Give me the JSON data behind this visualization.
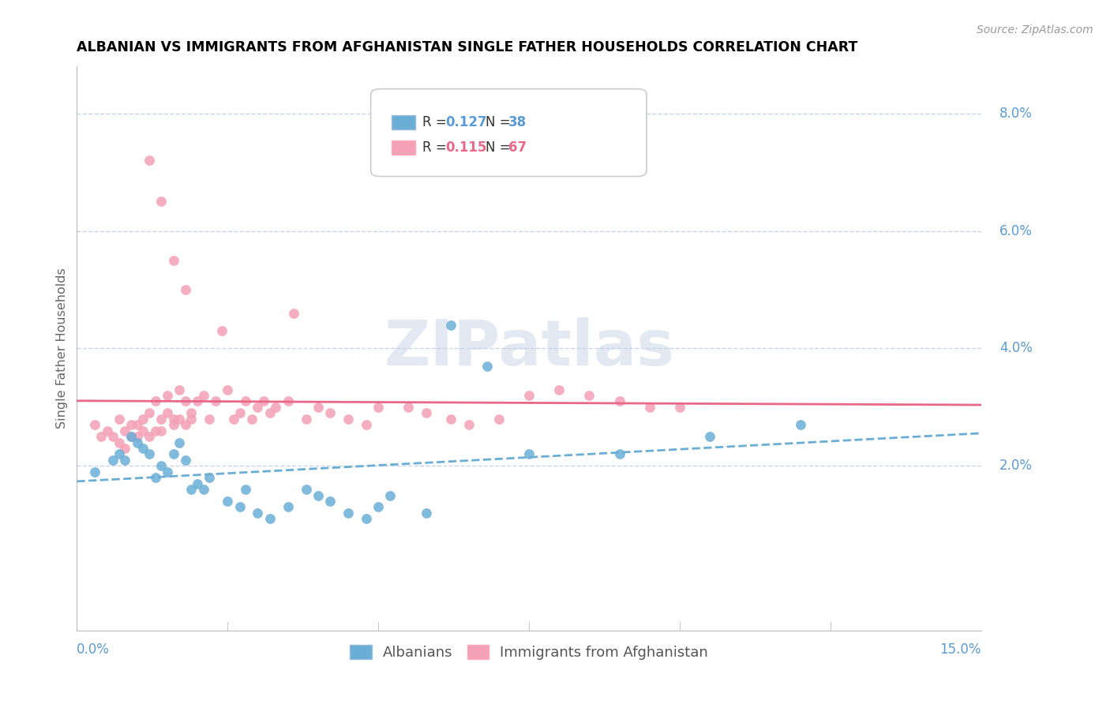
{
  "title": "ALBANIAN VS IMMIGRANTS FROM AFGHANISTAN SINGLE FATHER HOUSEHOLDS CORRELATION CHART",
  "source": "Source: ZipAtlas.com",
  "ylabel": "Single Father Households",
  "xlim": [
    0.0,
    0.15
  ],
  "ylim": [
    -0.008,
    0.088
  ],
  "color_blue": "#6aaed6",
  "color_pink": "#f4a0b5",
  "color_blue_dark": "#4393c3",
  "color_pink_dark": "#e8688a",
  "color_axis": "#5b9bd5",
  "color_grid": "#c8d4e8",
  "watermark": "ZIPatlas",
  "albanians_x": [
    0.003,
    0.006,
    0.007,
    0.008,
    0.009,
    0.01,
    0.011,
    0.012,
    0.013,
    0.014,
    0.015,
    0.016,
    0.017,
    0.018,
    0.019,
    0.02,
    0.021,
    0.022,
    0.025,
    0.027,
    0.028,
    0.03,
    0.032,
    0.035,
    0.038,
    0.04,
    0.042,
    0.045,
    0.048,
    0.05,
    0.052,
    0.058,
    0.062,
    0.068,
    0.075,
    0.09,
    0.105,
    0.12
  ],
  "albanians_y": [
    0.019,
    0.021,
    0.022,
    0.021,
    0.025,
    0.024,
    0.023,
    0.022,
    0.018,
    0.02,
    0.019,
    0.022,
    0.024,
    0.021,
    0.016,
    0.017,
    0.016,
    0.018,
    0.014,
    0.013,
    0.016,
    0.012,
    0.011,
    0.013,
    0.016,
    0.015,
    0.014,
    0.012,
    0.011,
    0.013,
    0.015,
    0.012,
    0.044,
    0.037,
    0.022,
    0.022,
    0.025,
    0.027
  ],
  "afghanistan_x": [
    0.003,
    0.004,
    0.005,
    0.006,
    0.007,
    0.007,
    0.008,
    0.008,
    0.009,
    0.009,
    0.01,
    0.01,
    0.011,
    0.011,
    0.012,
    0.012,
    0.013,
    0.013,
    0.014,
    0.014,
    0.015,
    0.015,
    0.016,
    0.016,
    0.017,
    0.017,
    0.018,
    0.018,
    0.019,
    0.019,
    0.02,
    0.021,
    0.022,
    0.023,
    0.024,
    0.025,
    0.026,
    0.027,
    0.028,
    0.029,
    0.03,
    0.031,
    0.032,
    0.033,
    0.035,
    0.036,
    0.038,
    0.04,
    0.042,
    0.045,
    0.048,
    0.05,
    0.055,
    0.058,
    0.062,
    0.065,
    0.07,
    0.075,
    0.08,
    0.085,
    0.09,
    0.095,
    0.1,
    0.012,
    0.014,
    0.016,
    0.018
  ],
  "afghanistan_y": [
    0.027,
    0.025,
    0.026,
    0.025,
    0.024,
    0.028,
    0.026,
    0.023,
    0.025,
    0.027,
    0.025,
    0.027,
    0.028,
    0.026,
    0.029,
    0.025,
    0.026,
    0.031,
    0.028,
    0.026,
    0.029,
    0.032,
    0.028,
    0.027,
    0.033,
    0.028,
    0.027,
    0.031,
    0.028,
    0.029,
    0.031,
    0.032,
    0.028,
    0.031,
    0.043,
    0.033,
    0.028,
    0.029,
    0.031,
    0.028,
    0.03,
    0.031,
    0.029,
    0.03,
    0.031,
    0.046,
    0.028,
    0.03,
    0.029,
    0.028,
    0.027,
    0.03,
    0.03,
    0.029,
    0.028,
    0.027,
    0.028,
    0.032,
    0.033,
    0.032,
    0.031,
    0.03,
    0.03,
    0.072,
    0.065,
    0.055,
    0.05
  ],
  "ytick_vals": [
    0.02,
    0.04,
    0.06,
    0.08
  ],
  "ytick_labels": [
    "2.0%",
    "4.0%",
    "6.0%",
    "8.0%"
  ],
  "legend_r1": "0.127",
  "legend_n1": "38",
  "legend_r2": "0.115",
  "legend_n2": "67"
}
